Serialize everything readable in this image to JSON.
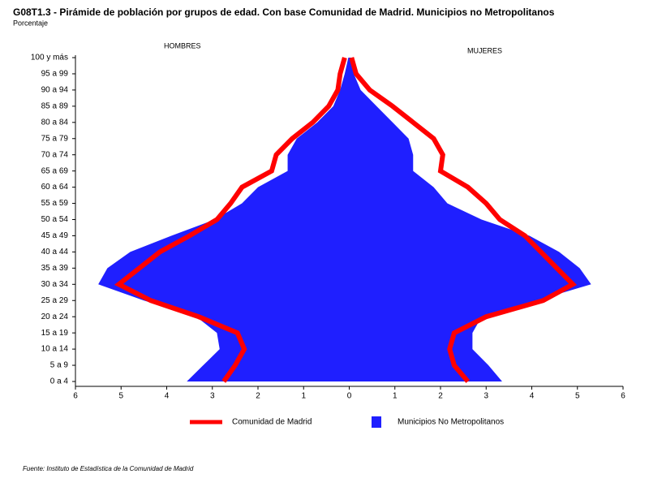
{
  "chart_data": {
    "type": "pyramid",
    "title": "G08T1.3 - Pirámide de población por grupos de edad. Con base Comunidad de Madrid. Municipios no Metropolitanos",
    "subtitle": "Porcentaje",
    "groups": [
      "HOMBRES",
      "MUJERES"
    ],
    "source": "Fuente: Instituto de Estadística de la Comunidad de Madrid",
    "categories": [
      "0 a 4",
      "5 a 9",
      "10 a 14",
      "15 a 19",
      "20 a 24",
      "25 a 29",
      "30 a 34",
      "35 a 39",
      "40 a 44",
      "45 a 49",
      "50 a 54",
      "55 a 59",
      "60 a 64",
      "65 a 69",
      "70 a 74",
      "75 a 79",
      "80 a 84",
      "85 a 89",
      "90 a 94",
      "95 a 99",
      "100 y más"
    ],
    "xlim": [
      -6,
      6
    ],
    "xticks": [
      {
        "value": -6,
        "label": "6"
      },
      {
        "value": -5,
        "label": "5"
      },
      {
        "value": -4,
        "label": "4"
      },
      {
        "value": -3,
        "label": "3"
      },
      {
        "value": -2,
        "label": "2"
      },
      {
        "value": -1,
        "label": "1"
      },
      0,
      1,
      2,
      3,
      4,
      5,
      6
    ],
    "series": [
      {
        "name": "Municipios No Metropolitanos",
        "color": "#1f1fff",
        "style": "area",
        "values": [
          [
            -3.56,
            -3.2,
            -2.84,
            -2.9,
            -3.35,
            -4.5,
            -5.5,
            -5.3,
            -4.8,
            -3.9,
            -2.95,
            -2.35,
            -2.0,
            -1.35,
            -1.35,
            -1.15,
            -0.7,
            -0.35,
            -0.2,
            -0.1,
            -0.02
          ],
          [
            3.35,
            3.05,
            2.7,
            2.7,
            2.9,
            4.1,
            5.3,
            5.05,
            4.6,
            3.95,
            2.9,
            2.15,
            1.85,
            1.4,
            1.4,
            1.3,
            0.95,
            0.6,
            0.25,
            0.1,
            0.05
          ]
        ]
      },
      {
        "name": "Comunidad de Madrid",
        "color": "#ff0000",
        "style": "line",
        "values": [
          [
            -2.75,
            -2.5,
            -2.3,
            -2.45,
            -3.3,
            -4.35,
            -5.05,
            -4.6,
            -4.15,
            -3.5,
            -2.9,
            -2.6,
            -2.35,
            -1.7,
            -1.6,
            -1.25,
            -0.8,
            -0.45,
            -0.25,
            -0.2,
            -0.1
          ],
          [
            2.6,
            2.3,
            2.2,
            2.3,
            3.0,
            4.25,
            4.9,
            4.55,
            4.2,
            3.85,
            3.3,
            3.0,
            2.6,
            2.0,
            2.05,
            1.85,
            1.4,
            0.95,
            0.45,
            0.15,
            0.05
          ]
        ]
      }
    ]
  }
}
